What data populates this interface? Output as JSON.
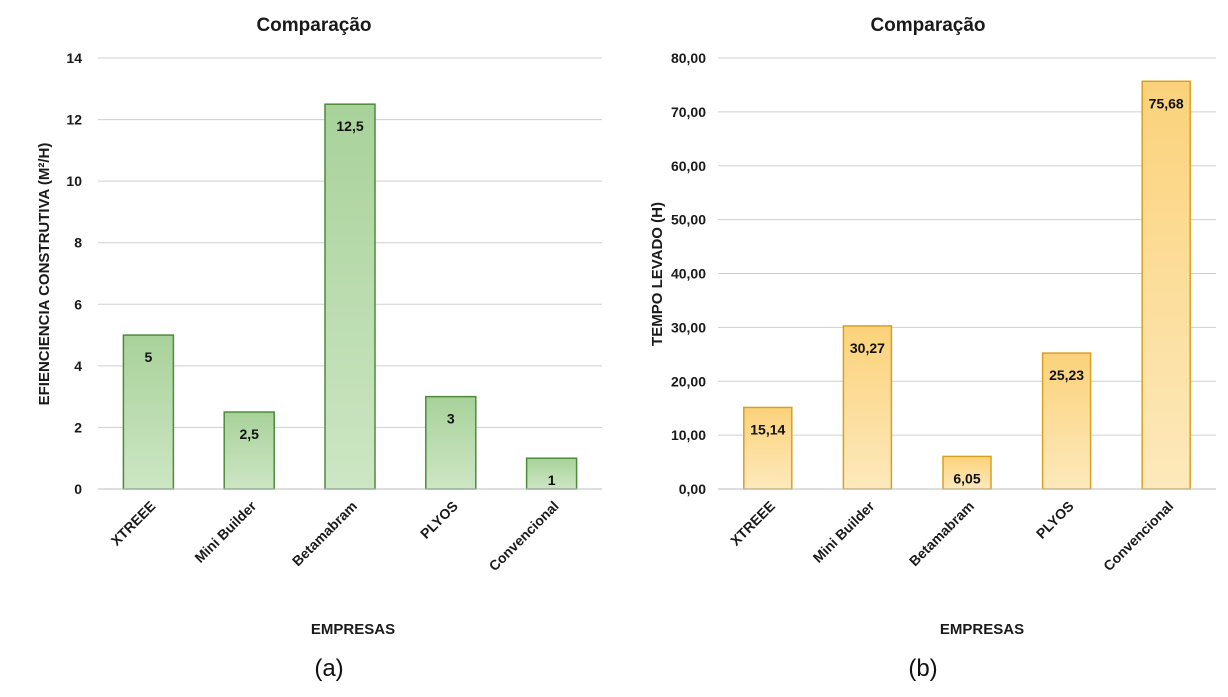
{
  "chart_data": [
    {
      "type": "bar",
      "title": "Comparação",
      "xlabel": "EMPRESAS",
      "ylabel": "EFIENCIENCIA CONSTRUTIVA (M²/H)",
      "panel_label": "(a)",
      "categories": [
        "XTREEE",
        "Mini Builder",
        "Betamabram",
        "PLYOS",
        "Convencional"
      ],
      "values": [
        5,
        2.5,
        12.5,
        3,
        1
      ],
      "value_labels": [
        "5",
        "2,5",
        "12,5",
        "3",
        "1"
      ],
      "ylim": [
        0,
        14
      ],
      "yticks": [
        "0",
        "2",
        "4",
        "6",
        "8",
        "10",
        "12",
        "14"
      ],
      "colors": {
        "fill_top": "#a8d29a",
        "fill_bottom": "#cde6c4",
        "stroke": "#4e8a3c"
      },
      "grid": true
    },
    {
      "type": "bar",
      "title": "Comparação",
      "xlabel": "EMPRESAS",
      "ylabel": "TEMPO LEVADO (H)",
      "panel_label": "(b)",
      "categories": [
        "XTREEE",
        "Mini Builder",
        "Betamabram",
        "PLYOS",
        "Convencional"
      ],
      "values": [
        15.14,
        30.27,
        6.05,
        25.23,
        75.68
      ],
      "value_labels": [
        "15,14",
        "30,27",
        "6,05",
        "25,23",
        "75,68"
      ],
      "ylim": [
        0,
        80
      ],
      "yticks": [
        "0,00",
        "10,00",
        "20,00",
        "30,00",
        "40,00",
        "50,00",
        "60,00",
        "70,00",
        "80,00"
      ],
      "colors": {
        "fill_top": "#fbd27a",
        "fill_bottom": "#fde9bc",
        "stroke": "#d8a020"
      },
      "grid": true
    }
  ]
}
